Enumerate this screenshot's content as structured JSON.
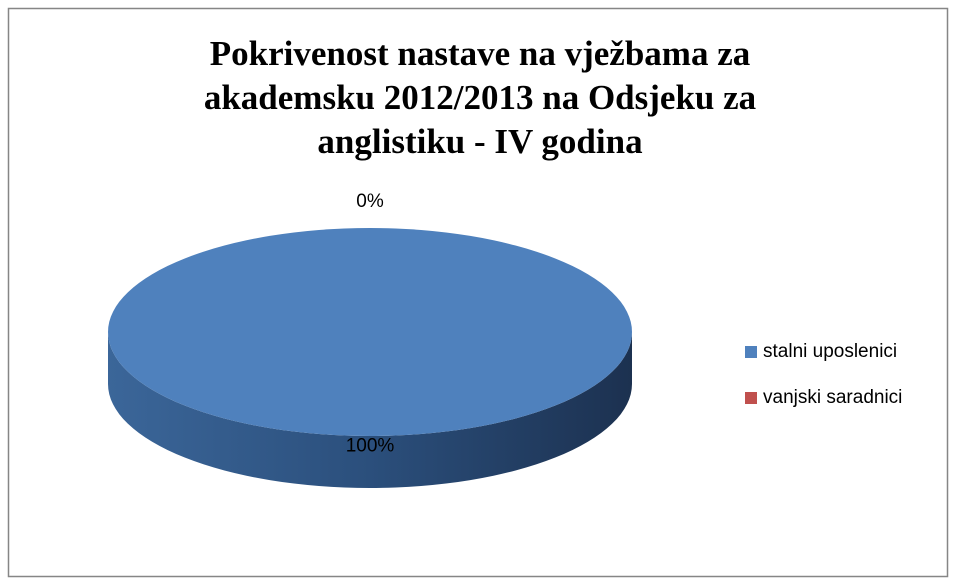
{
  "chart_data": {
    "type": "pie",
    "title": "Pokrivenost nastave na vježbama za akademsku 2012/2013 na Odsjeku za anglistiku - IV godina",
    "categories": [
      "stalni uposlenici",
      "vanjski saradnici"
    ],
    "values": [
      100,
      0
    ],
    "value_labels": [
      "100%",
      "0%"
    ],
    "series_colors": [
      "#4f81bd",
      "#c0504d"
    ],
    "legend": "right"
  }
}
